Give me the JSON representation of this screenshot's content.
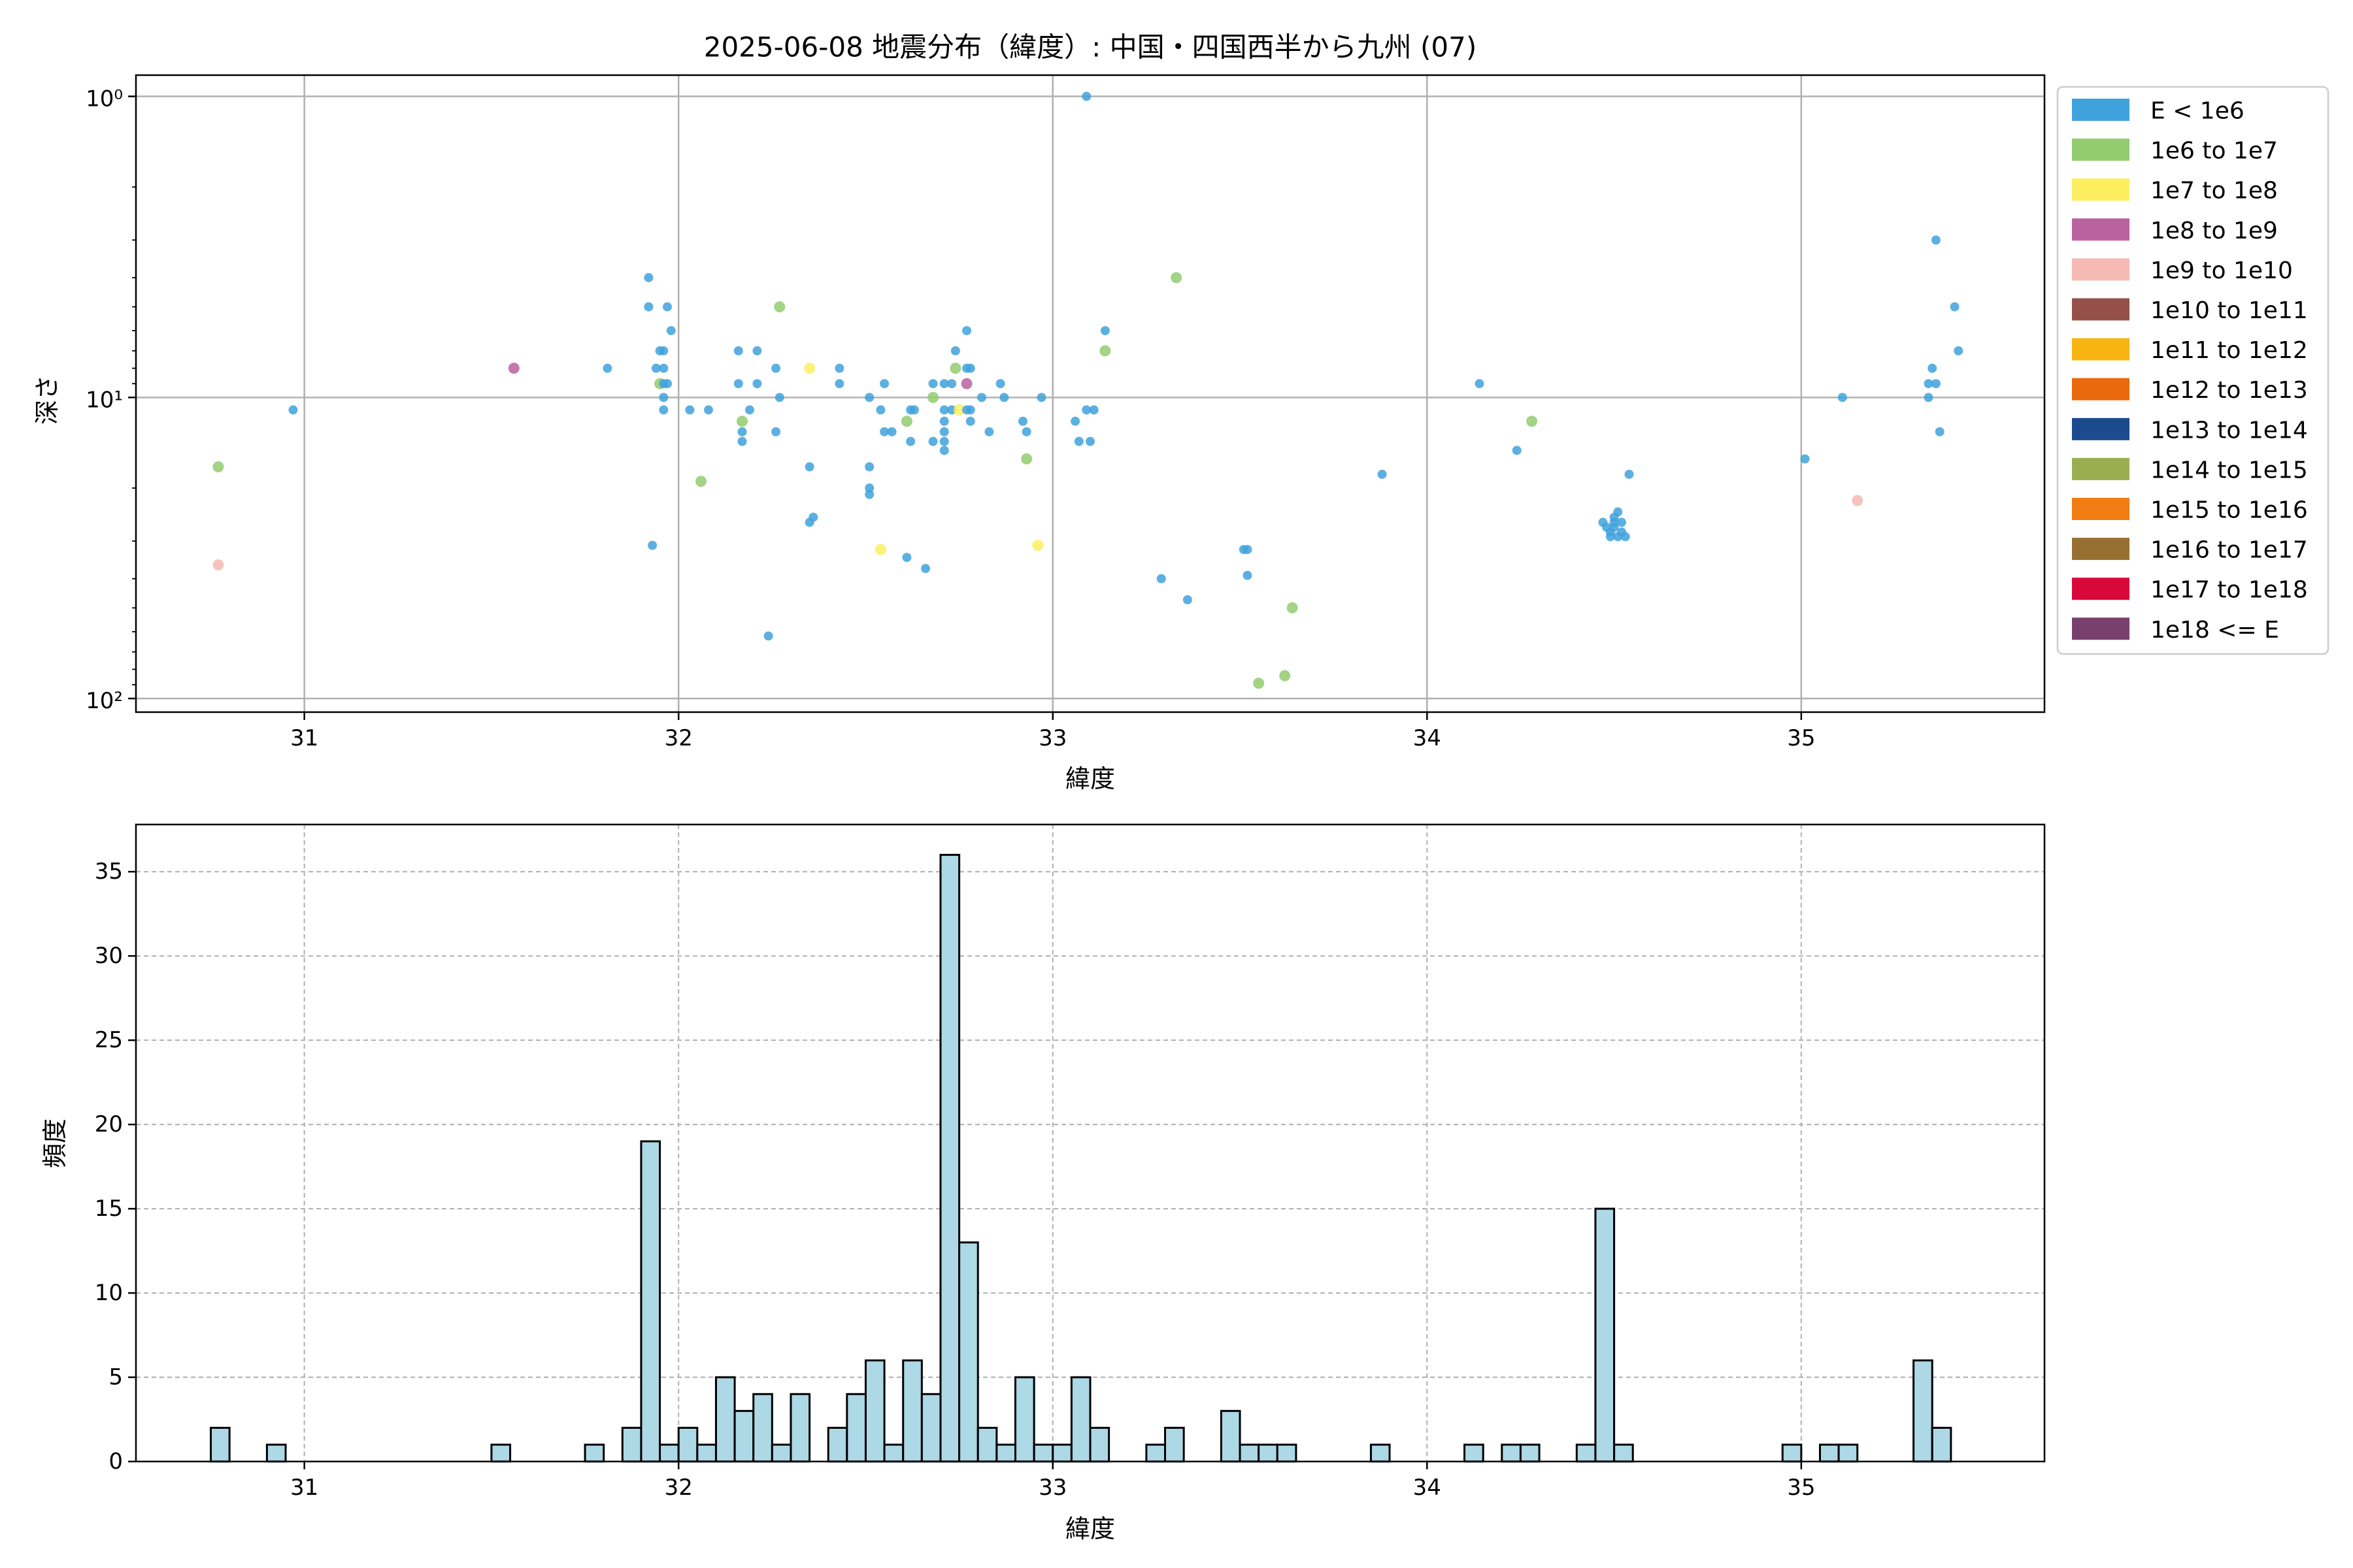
{
  "title": "2025-06-08 地震分布（緯度）: 中国・四国西半から九州 (07)",
  "chart_data": [
    {
      "type": "scatter",
      "xlabel": "緯度",
      "ylabel": "深さ",
      "xlim": [
        30.55,
        35.65
      ],
      "ylim_log": [
        111,
        0.85
      ],
      "yscale": "log",
      "y_inverted": true,
      "x_ticks": [
        31,
        32,
        33,
        34,
        35
      ],
      "y_ticks": [
        {
          "value": 1,
          "label": "10⁰"
        },
        {
          "value": 10,
          "label": "10¹"
        },
        {
          "value": 100,
          "label": "10²"
        }
      ],
      "grid": true,
      "legend_position": "outside-right",
      "legend": [
        {
          "label": "E < 1e6",
          "color": "#3fa2dc"
        },
        {
          "label": "1e6 to 1e7",
          "color": "#93cb6f"
        },
        {
          "label": "1e7 to 1e8",
          "color": "#fdee5f"
        },
        {
          "label": "1e8 to 1e9",
          "color": "#b9629f"
        },
        {
          "label": "1e9 to 1e10",
          "color": "#f4bab3"
        },
        {
          "label": "1e10 to 1e11",
          "color": "#96504a"
        },
        {
          "label": "1e11 to 1e12",
          "color": "#f8b411"
        },
        {
          "label": "1e12 to 1e13",
          "color": "#e9690c"
        },
        {
          "label": "1e13 to 1e14",
          "color": "#1c4a8f"
        },
        {
          "label": "1e14 to 1e15",
          "color": "#9aae51"
        },
        {
          "label": "1e15 to 1e16",
          "color": "#f07c12"
        },
        {
          "label": "1e16 to 1e17",
          "color": "#977031"
        },
        {
          "label": "1e17 to 1e18",
          "color": "#d8083b"
        },
        {
          "label": "1e18 <= E",
          "color": "#7a406d"
        }
      ],
      "points": [
        {
          "x": 30.77,
          "y": 17,
          "c": 1
        },
        {
          "x": 30.77,
          "y": 36,
          "c": 4
        },
        {
          "x": 30.97,
          "y": 11,
          "c": 0
        },
        {
          "x": 31.56,
          "y": 8,
          "c": 3
        },
        {
          "x": 31.81,
          "y": 8,
          "c": 0
        },
        {
          "x": 31.92,
          "y": 4,
          "c": 0
        },
        {
          "x": 31.92,
          "y": 5,
          "c": 0
        },
        {
          "x": 31.93,
          "y": 31,
          "c": 0
        },
        {
          "x": 31.94,
          "y": 8,
          "c": 0
        },
        {
          "x": 31.95,
          "y": 7,
          "c": 0
        },
        {
          "x": 31.95,
          "y": 9,
          "c": 1
        },
        {
          "x": 31.96,
          "y": 7,
          "c": 0
        },
        {
          "x": 31.96,
          "y": 8,
          "c": 0
        },
        {
          "x": 31.96,
          "y": 9,
          "c": 0
        },
        {
          "x": 31.96,
          "y": 10,
          "c": 0
        },
        {
          "x": 31.96,
          "y": 11,
          "c": 0
        },
        {
          "x": 31.97,
          "y": 5,
          "c": 0
        },
        {
          "x": 31.97,
          "y": 9,
          "c": 0
        },
        {
          "x": 31.98,
          "y": 6,
          "c": 0
        },
        {
          "x": 32.03,
          "y": 11,
          "c": 0
        },
        {
          "x": 32.06,
          "y": 19,
          "c": 1
        },
        {
          "x": 32.08,
          "y": 11,
          "c": 0
        },
        {
          "x": 32.16,
          "y": 7,
          "c": 0
        },
        {
          "x": 32.16,
          "y": 9,
          "c": 0
        },
        {
          "x": 32.17,
          "y": 13,
          "c": 0
        },
        {
          "x": 32.17,
          "y": 14,
          "c": 0
        },
        {
          "x": 32.17,
          "y": 12,
          "c": 1
        },
        {
          "x": 32.19,
          "y": 11,
          "c": 0
        },
        {
          "x": 32.21,
          "y": 7,
          "c": 0
        },
        {
          "x": 32.21,
          "y": 9,
          "c": 0
        },
        {
          "x": 32.24,
          "y": 62,
          "c": 0
        },
        {
          "x": 32.26,
          "y": 8,
          "c": 0
        },
        {
          "x": 32.26,
          "y": 13,
          "c": 0
        },
        {
          "x": 32.27,
          "y": 5,
          "c": 1
        },
        {
          "x": 32.27,
          "y": 10,
          "c": 0
        },
        {
          "x": 32.35,
          "y": 8,
          "c": 2
        },
        {
          "x": 32.35,
          "y": 17,
          "c": 0
        },
        {
          "x": 32.35,
          "y": 26,
          "c": 0
        },
        {
          "x": 32.36,
          "y": 25,
          "c": 0
        },
        {
          "x": 32.43,
          "y": 8,
          "c": 0
        },
        {
          "x": 32.43,
          "y": 9,
          "c": 0
        },
        {
          "x": 32.51,
          "y": 10,
          "c": 0
        },
        {
          "x": 32.51,
          "y": 17,
          "c": 0
        },
        {
          "x": 32.51,
          "y": 20,
          "c": 0
        },
        {
          "x": 32.51,
          "y": 21,
          "c": 0
        },
        {
          "x": 32.54,
          "y": 11,
          "c": 0
        },
        {
          "x": 32.54,
          "y": 32,
          "c": 2
        },
        {
          "x": 32.55,
          "y": 9,
          "c": 0
        },
        {
          "x": 32.55,
          "y": 13,
          "c": 0
        },
        {
          "x": 32.57,
          "y": 13,
          "c": 0
        },
        {
          "x": 32.61,
          "y": 34,
          "c": 0
        },
        {
          "x": 32.61,
          "y": 12,
          "c": 1
        },
        {
          "x": 32.62,
          "y": 11,
          "c": 0
        },
        {
          "x": 32.62,
          "y": 14,
          "c": 0
        },
        {
          "x": 32.63,
          "y": 11,
          "c": 0
        },
        {
          "x": 32.66,
          "y": 37,
          "c": 0
        },
        {
          "x": 32.68,
          "y": 9,
          "c": 0
        },
        {
          "x": 32.68,
          "y": 14,
          "c": 0
        },
        {
          "x": 32.68,
          "y": 10,
          "c": 1
        },
        {
          "x": 32.71,
          "y": 9,
          "c": 0
        },
        {
          "x": 32.71,
          "y": 11,
          "c": 0
        },
        {
          "x": 32.71,
          "y": 12,
          "c": 0
        },
        {
          "x": 32.71,
          "y": 13,
          "c": 0
        },
        {
          "x": 32.71,
          "y": 14,
          "c": 0
        },
        {
          "x": 32.71,
          "y": 15,
          "c": 0
        },
        {
          "x": 32.73,
          "y": 9,
          "c": 0
        },
        {
          "x": 32.73,
          "y": 11,
          "c": 0
        },
        {
          "x": 32.74,
          "y": 7,
          "c": 0
        },
        {
          "x": 32.74,
          "y": 8,
          "c": 1
        },
        {
          "x": 32.75,
          "y": 11,
          "c": 2
        },
        {
          "x": 32.77,
          "y": 6,
          "c": 0
        },
        {
          "x": 32.77,
          "y": 8,
          "c": 0
        },
        {
          "x": 32.77,
          "y": 9,
          "c": 3
        },
        {
          "x": 32.77,
          "y": 11,
          "c": 0
        },
        {
          "x": 32.78,
          "y": 8,
          "c": 0
        },
        {
          "x": 32.78,
          "y": 11,
          "c": 0
        },
        {
          "x": 32.78,
          "y": 12,
          "c": 0
        },
        {
          "x": 32.81,
          "y": 10,
          "c": 0
        },
        {
          "x": 32.83,
          "y": 13,
          "c": 0
        },
        {
          "x": 32.86,
          "y": 9,
          "c": 0
        },
        {
          "x": 32.87,
          "y": 10,
          "c": 0
        },
        {
          "x": 32.92,
          "y": 12,
          "c": 0
        },
        {
          "x": 32.93,
          "y": 13,
          "c": 0
        },
        {
          "x": 32.93,
          "y": 16,
          "c": 1
        },
        {
          "x": 32.96,
          "y": 31,
          "c": 2
        },
        {
          "x": 32.97,
          "y": 10,
          "c": 0
        },
        {
          "x": 33.06,
          "y": 12,
          "c": 0
        },
        {
          "x": 33.07,
          "y": 14,
          "c": 0
        },
        {
          "x": 33.09,
          "y": 1,
          "c": 0
        },
        {
          "x": 33.09,
          "y": 11,
          "c": 0
        },
        {
          "x": 33.1,
          "y": 14,
          "c": 0
        },
        {
          "x": 33.11,
          "y": 11,
          "c": 0
        },
        {
          "x": 33.14,
          "y": 6,
          "c": 0
        },
        {
          "x": 33.14,
          "y": 7,
          "c": 1
        },
        {
          "x": 33.29,
          "y": 40,
          "c": 0
        },
        {
          "x": 33.33,
          "y": 4,
          "c": 1
        },
        {
          "x": 33.36,
          "y": 47,
          "c": 0
        },
        {
          "x": 33.51,
          "y": 32,
          "c": 0
        },
        {
          "x": 33.52,
          "y": 32,
          "c": 0
        },
        {
          "x": 33.52,
          "y": 39,
          "c": 0
        },
        {
          "x": 33.55,
          "y": 89,
          "c": 1
        },
        {
          "x": 33.62,
          "y": 84,
          "c": 1
        },
        {
          "x": 33.64,
          "y": 50,
          "c": 1
        },
        {
          "x": 33.88,
          "y": 18,
          "c": 0
        },
        {
          "x": 34.14,
          "y": 9,
          "c": 0
        },
        {
          "x": 34.24,
          "y": 15,
          "c": 0
        },
        {
          "x": 34.28,
          "y": 12,
          "c": 1
        },
        {
          "x": 34.47,
          "y": 26,
          "c": 0
        },
        {
          "x": 34.48,
          "y": 27,
          "c": 0
        },
        {
          "x": 34.49,
          "y": 28,
          "c": 0
        },
        {
          "x": 34.49,
          "y": 29,
          "c": 0
        },
        {
          "x": 34.5,
          "y": 25,
          "c": 0
        },
        {
          "x": 34.5,
          "y": 26,
          "c": 0
        },
        {
          "x": 34.5,
          "y": 27,
          "c": 0
        },
        {
          "x": 34.51,
          "y": 24,
          "c": 0
        },
        {
          "x": 34.51,
          "y": 29,
          "c": 0
        },
        {
          "x": 34.52,
          "y": 26,
          "c": 0
        },
        {
          "x": 34.52,
          "y": 28,
          "c": 0
        },
        {
          "x": 34.53,
          "y": 29,
          "c": 0
        },
        {
          "x": 34.54,
          "y": 18,
          "c": 0
        },
        {
          "x": 35.01,
          "y": 16,
          "c": 0
        },
        {
          "x": 35.11,
          "y": 10,
          "c": 0
        },
        {
          "x": 35.15,
          "y": 22,
          "c": 4
        },
        {
          "x": 35.34,
          "y": 9,
          "c": 0
        },
        {
          "x": 35.34,
          "y": 10,
          "c": 0
        },
        {
          "x": 35.35,
          "y": 8,
          "c": 0
        },
        {
          "x": 35.36,
          "y": 9,
          "c": 0
        },
        {
          "x": 35.36,
          "y": 3,
          "c": 0
        },
        {
          "x": 35.37,
          "y": 13,
          "c": 0
        },
        {
          "x": 35.41,
          "y": 5,
          "c": 0
        },
        {
          "x": 35.42,
          "y": 7,
          "c": 0
        }
      ]
    },
    {
      "type": "bar",
      "xlabel": "緯度",
      "ylabel": "頻度",
      "xlim": [
        30.55,
        35.65
      ],
      "ylim": [
        0,
        37.8
      ],
      "x_ticks": [
        31,
        32,
        33,
        34,
        35
      ],
      "y_ticks": [
        0,
        5,
        10,
        15,
        20,
        25,
        30,
        35
      ],
      "grid": true,
      "bar_color": "#add8e6",
      "bar_edge_color": "#000000",
      "bin_width": 0.05,
      "bins": [
        {
          "x": 30.775,
          "count": 2
        },
        {
          "x": 30.925,
          "count": 1
        },
        {
          "x": 31.525,
          "count": 1
        },
        {
          "x": 31.775,
          "count": 1
        },
        {
          "x": 31.875,
          "count": 2
        },
        {
          "x": 31.925,
          "count": 19
        },
        {
          "x": 31.975,
          "count": 1
        },
        {
          "x": 32.025,
          "count": 2
        },
        {
          "x": 32.075,
          "count": 1
        },
        {
          "x": 32.125,
          "count": 5
        },
        {
          "x": 32.175,
          "count": 3
        },
        {
          "x": 32.225,
          "count": 4
        },
        {
          "x": 32.275,
          "count": 1
        },
        {
          "x": 32.325,
          "count": 4
        },
        {
          "x": 32.425,
          "count": 2
        },
        {
          "x": 32.475,
          "count": 4
        },
        {
          "x": 32.525,
          "count": 6
        },
        {
          "x": 32.575,
          "count": 1
        },
        {
          "x": 32.625,
          "count": 6
        },
        {
          "x": 32.675,
          "count": 4
        },
        {
          "x": 32.725,
          "count": 36
        },
        {
          "x": 32.775,
          "count": 13
        },
        {
          "x": 32.825,
          "count": 2
        },
        {
          "x": 32.875,
          "count": 1
        },
        {
          "x": 32.925,
          "count": 5
        },
        {
          "x": 32.975,
          "count": 1
        },
        {
          "x": 33.025,
          "count": 1
        },
        {
          "x": 33.075,
          "count": 5
        },
        {
          "x": 33.125,
          "count": 2
        },
        {
          "x": 33.275,
          "count": 1
        },
        {
          "x": 33.325,
          "count": 2
        },
        {
          "x": 33.475,
          "count": 3
        },
        {
          "x": 33.525,
          "count": 1
        },
        {
          "x": 33.575,
          "count": 1
        },
        {
          "x": 33.625,
          "count": 1
        },
        {
          "x": 33.875,
          "count": 1
        },
        {
          "x": 34.125,
          "count": 1
        },
        {
          "x": 34.225,
          "count": 1
        },
        {
          "x": 34.275,
          "count": 1
        },
        {
          "x": 34.425,
          "count": 1
        },
        {
          "x": 34.475,
          "count": 15
        },
        {
          "x": 34.525,
          "count": 1
        },
        {
          "x": 34.975,
          "count": 1
        },
        {
          "x": 35.075,
          "count": 1
        },
        {
          "x": 35.125,
          "count": 1
        },
        {
          "x": 35.325,
          "count": 6
        },
        {
          "x": 35.375,
          "count": 2
        }
      ]
    }
  ]
}
